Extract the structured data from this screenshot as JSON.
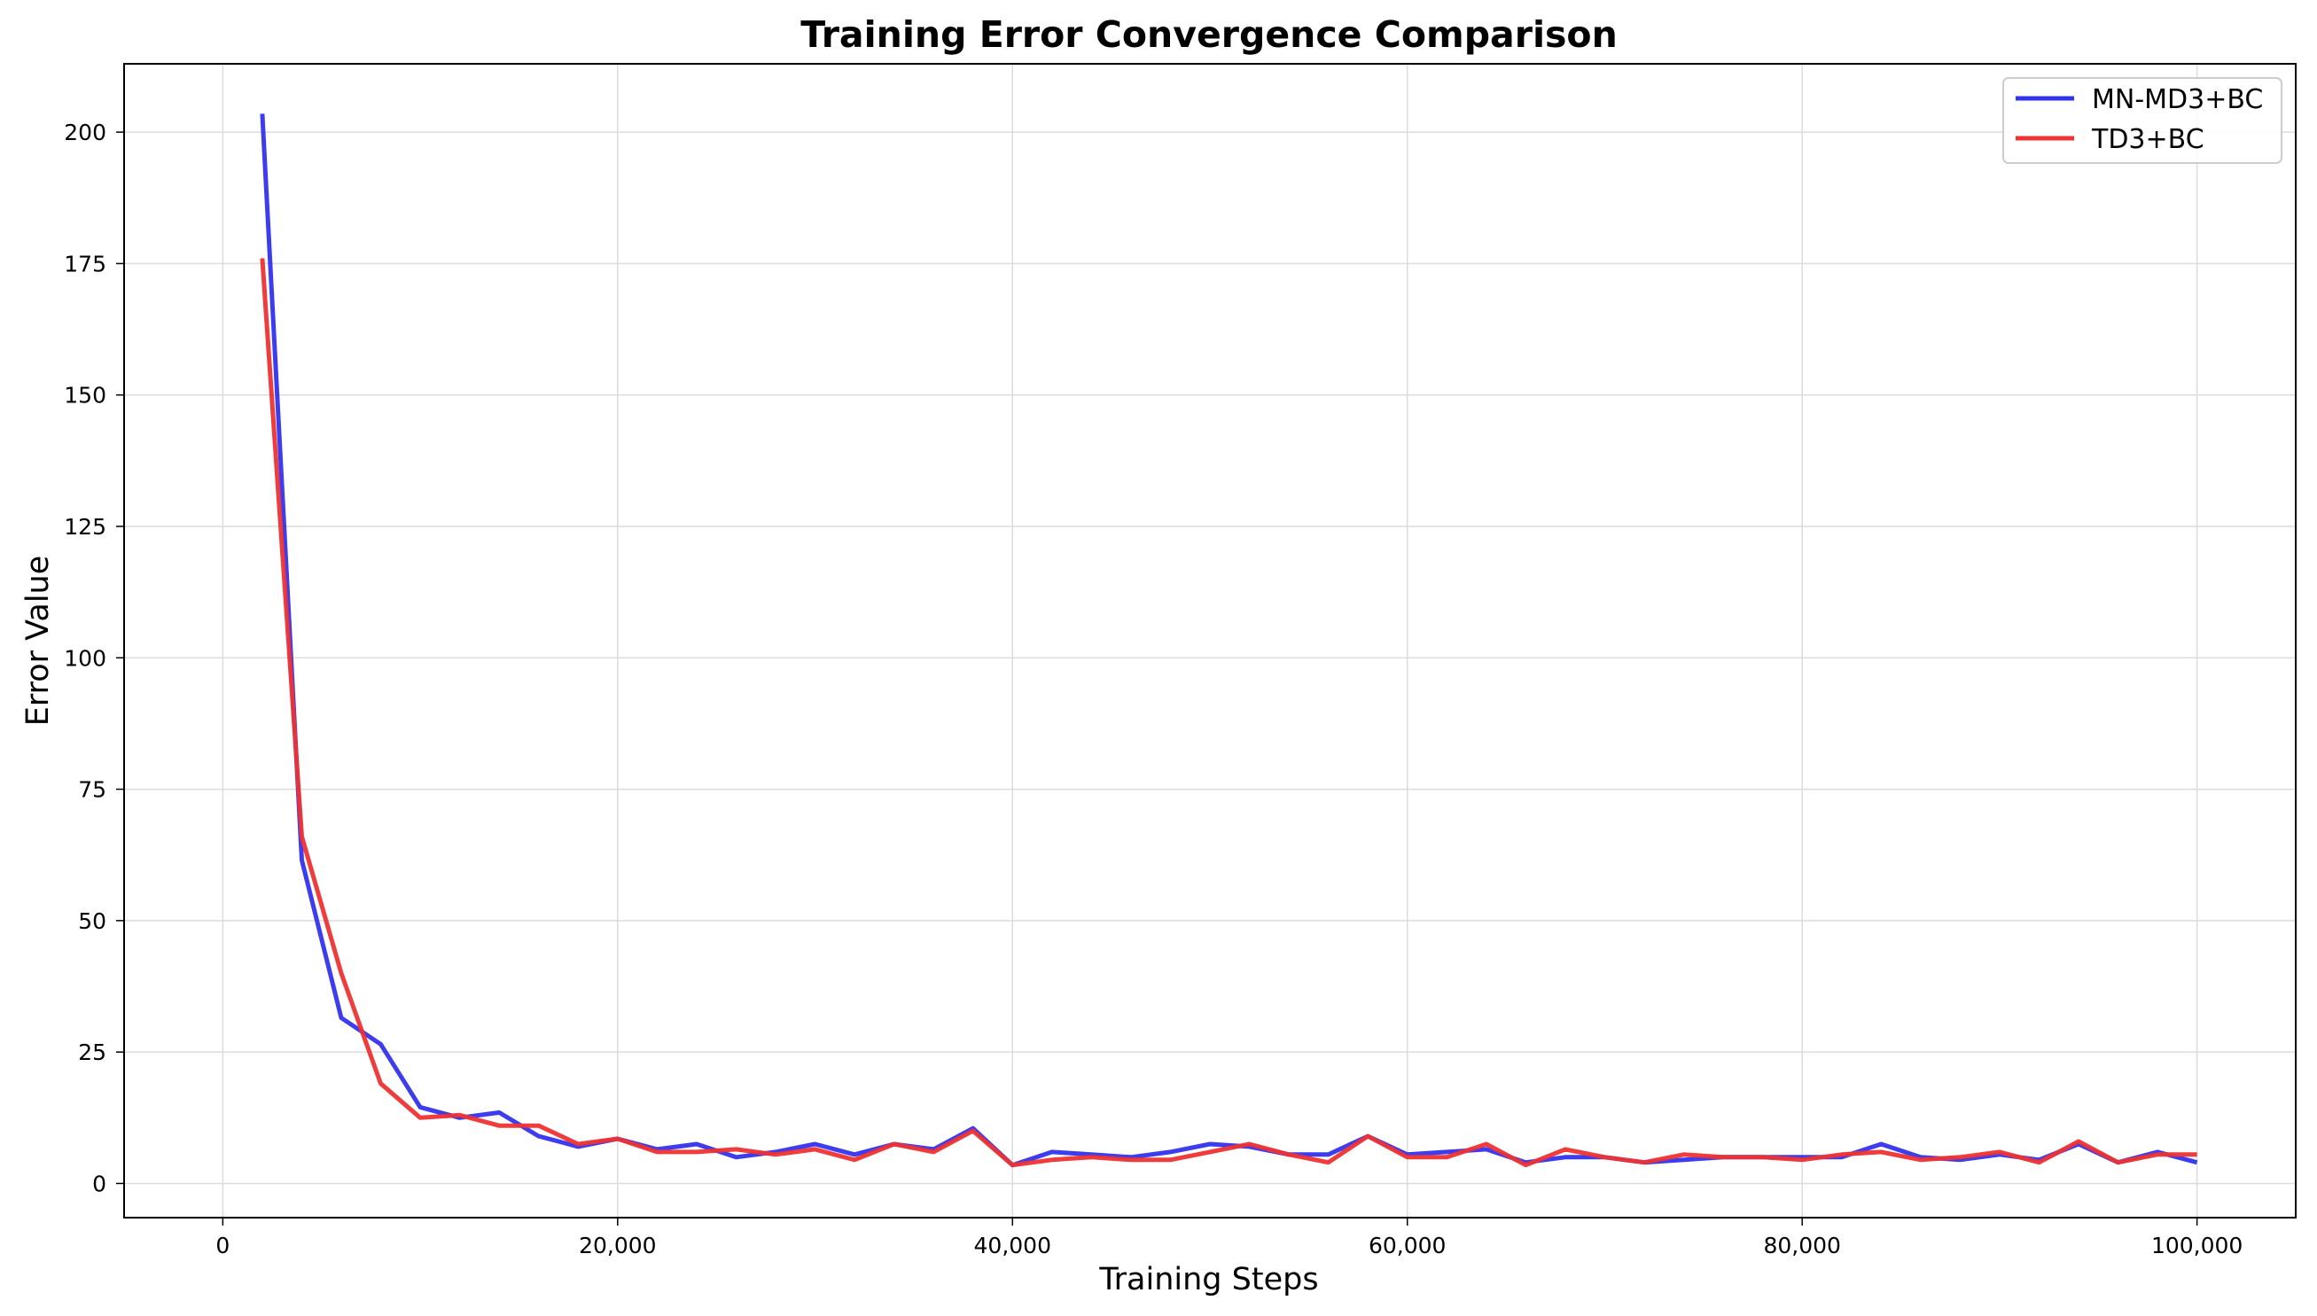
{
  "chart_data": {
    "type": "line",
    "title": "Training Error Convergence Comparison",
    "xlabel": "Training Steps",
    "ylabel": "Error Value",
    "xlim": [
      -5000,
      105000
    ],
    "ylim": [
      -6.5,
      213
    ],
    "xticks": [
      0,
      20000,
      40000,
      60000,
      80000,
      100000
    ],
    "xtick_labels": [
      "0",
      "20,000",
      "40,000",
      "60,000",
      "80,000",
      "100,000"
    ],
    "yticks": [
      0,
      25,
      50,
      75,
      100,
      125,
      150,
      175,
      200
    ],
    "ytick_labels": [
      "0",
      "25",
      "50",
      "75",
      "100",
      "125",
      "150",
      "175",
      "200"
    ],
    "grid": true,
    "legend_position": "top-right",
    "x": [
      2000,
      4000,
      6000,
      8000,
      10000,
      12000,
      14000,
      16000,
      18000,
      20000,
      22000,
      24000,
      26000,
      28000,
      30000,
      32000,
      34000,
      36000,
      38000,
      40000,
      42000,
      44000,
      46000,
      48000,
      50000,
      52000,
      54000,
      56000,
      58000,
      60000,
      62000,
      64000,
      66000,
      68000,
      70000,
      72000,
      74000,
      76000,
      78000,
      80000,
      82000,
      84000,
      86000,
      88000,
      90000,
      92000,
      94000,
      96000,
      98000,
      100000
    ],
    "series": [
      {
        "name": "MN-MD3+BC",
        "color": "#3333ee",
        "values": [
          203.5,
          61.5,
          31.5,
          26.5,
          14.5,
          12.5,
          13.5,
          9,
          7,
          8.5,
          6.5,
          7.5,
          5,
          6,
          7.5,
          5.5,
          7.5,
          6.5,
          10.5,
          3.5,
          6,
          5.5,
          5,
          6,
          7.5,
          7,
          5.5,
          5.5,
          9,
          5.5,
          6,
          6.5,
          4,
          5,
          5,
          4,
          4.5,
          5,
          5,
          5,
          5,
          7.5,
          5,
          4.5,
          5.5,
          4.5,
          7.5,
          4,
          6,
          4
        ]
      },
      {
        "name": "TD3+BC",
        "color": "#ee3333",
        "values": [
          176,
          66,
          40,
          19,
          12.5,
          13,
          11,
          11,
          7.5,
          8.5,
          6,
          6,
          6.5,
          5.5,
          6.5,
          4.5,
          7.5,
          6,
          10,
          3.5,
          4.5,
          5,
          4.5,
          4.5,
          6,
          7.5,
          5.5,
          4,
          9,
          5,
          5,
          7.5,
          3.5,
          6.5,
          5,
          4,
          5.5,
          5,
          5,
          4.5,
          5.5,
          6,
          4.5,
          5,
          6,
          4,
          8,
          4,
          5.5,
          5.5
        ]
      }
    ]
  }
}
